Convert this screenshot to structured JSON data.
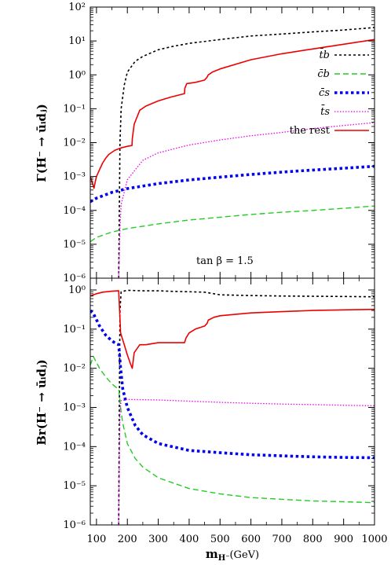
{
  "chart_data": [
    {
      "type": "line",
      "ylabel": "Γ(H⁻ → ūᵢdⱼ)",
      "yscale": "log",
      "ylim": [
        1e-06,
        100
      ],
      "xlim": [
        80,
        1000
      ],
      "y_tick_labels": [
        "10⁻⁶",
        "10⁻⁵",
        "10⁻⁴",
        "10⁻³",
        "10⁻²",
        "10⁻¹",
        "10⁰",
        "10¹",
        "10²"
      ],
      "annotation": "tan β = 1.5",
      "legend_position": "upper-right",
      "series": [
        {
          "name": "t̄b",
          "color": "#000000",
          "style": "dotted-thin",
          "x": [
            172,
            176,
            180,
            190,
            200,
            225,
            250,
            300,
            350,
            400,
            500,
            600,
            700,
            800,
            900,
            1000
          ],
          "y": [
            1e-06,
            0.01,
            0.1,
            0.5,
            1.2,
            2.5,
            3.5,
            5.5,
            7,
            8.5,
            11,
            14,
            16,
            18.5,
            21,
            25
          ]
        },
        {
          "name": "c̄b",
          "color": "#22cc22",
          "style": "dashed",
          "x": [
            80,
            100,
            150,
            200,
            300,
            400,
            500,
            600,
            700,
            800,
            900,
            1000
          ],
          "y": [
            1.2e-05,
            1.6e-05,
            2.3e-05,
            2.9e-05,
            4e-05,
            5.2e-05,
            6.3e-05,
            7.6e-05,
            8.8e-05,
            0.0001,
            0.000115,
            0.000135
          ]
        },
        {
          "name": "c̄s",
          "color": "#0000ee",
          "style": "dotted-thick",
          "x": [
            80,
            100,
            150,
            200,
            300,
            400,
            500,
            600,
            700,
            800,
            900,
            1000
          ],
          "y": [
            0.00018,
            0.00023,
            0.00034,
            0.00044,
            0.00062,
            0.00079,
            0.00096,
            0.00115,
            0.00135,
            0.00155,
            0.00175,
            0.002
          ]
        },
        {
          "name": "t̄s",
          "color": "#ee00ee",
          "style": "dotted-fine",
          "x": [
            172,
            176,
            180,
            200,
            250,
            300,
            400,
            500,
            600,
            700,
            800,
            900,
            1000
          ],
          "y": [
            1e-06,
            3e-05,
            0.00015,
            0.0008,
            0.003,
            0.005,
            0.0085,
            0.012,
            0.016,
            0.02,
            0.026,
            0.032,
            0.039
          ]
        },
        {
          "name": "the rest",
          "color": "#ee0000",
          "style": "solid",
          "x": [
            80,
            88,
            92,
            96,
            100,
            110,
            120,
            130,
            140,
            160,
            180,
            200,
            215,
            216,
            222,
            240,
            260,
            300,
            340,
            385,
            386,
            392,
            420,
            450,
            458,
            462,
            475,
            500,
            600,
            700,
            800,
            900,
            1000
          ],
          "y": [
            0.001,
            0.0006,
            0.00045,
            0.0007,
            0.001,
            0.0016,
            0.0025,
            0.0035,
            0.0045,
            0.006,
            0.007,
            0.0078,
            0.0082,
            0.013,
            0.035,
            0.09,
            0.12,
            0.17,
            0.22,
            0.28,
            0.4,
            0.55,
            0.6,
            0.7,
            0.85,
            1.0,
            1.2,
            1.5,
            2.8,
            4.2,
            5.8,
            8,
            11
          ]
        }
      ]
    },
    {
      "type": "line",
      "ylabel": "Br(H⁻ → ūᵢdⱼ)",
      "xlabel_main": "m",
      "xlabel_sub": "H⁻",
      "xlabel_unit": "(GeV)",
      "yscale": "log",
      "ylim": [
        1e-06,
        2
      ],
      "xlim": [
        80,
        1000
      ],
      "x_ticks": [
        100,
        200,
        300,
        400,
        500,
        600,
        700,
        800,
        900,
        1000
      ],
      "y_tick_labels": [
        "10⁻⁶",
        "10⁻⁵",
        "10⁻⁴",
        "10⁻³",
        "10⁻²",
        "10⁻¹",
        "10⁰"
      ],
      "series": [
        {
          "name": "t̄b",
          "color": "#000000",
          "style": "dotted-thin",
          "x": [
            172,
            174,
            176,
            180,
            200,
            250,
            300,
            350,
            400,
            450,
            480,
            500,
            600,
            700,
            800,
            900,
            1000
          ],
          "y": [
            1e-06,
            0.001,
            0.3,
            0.9,
            0.98,
            0.95,
            0.95,
            0.92,
            0.9,
            0.88,
            0.8,
            0.75,
            0.72,
            0.7,
            0.69,
            0.68,
            0.67
          ]
        },
        {
          "name": "c̄b",
          "color": "#22cc22",
          "style": "dashed",
          "x": [
            80,
            90,
            110,
            130,
            150,
            165,
            172,
            178,
            185,
            200,
            225,
            250,
            300,
            400,
            500,
            600,
            700,
            800,
            900,
            1000
          ],
          "y": [
            0.012,
            0.02,
            0.01,
            0.006,
            0.004,
            0.0032,
            0.003,
            0.001,
            0.0004,
            0.00012,
            5e-05,
            3e-05,
            1.6e-05,
            8.5e-06,
            6.2e-06,
            5e-06,
            4.5e-06,
            4.1e-06,
            3.9e-06,
            3.7e-06
          ]
        },
        {
          "name": "c̄s",
          "color": "#0000ee",
          "style": "dotted-thick",
          "x": [
            80,
            90,
            110,
            130,
            150,
            165,
            172,
            178,
            185,
            200,
            225,
            250,
            300,
            400,
            500,
            600,
            700,
            800,
            900,
            1000
          ],
          "y": [
            0.3,
            0.25,
            0.12,
            0.07,
            0.05,
            0.042,
            0.04,
            0.01,
            0.003,
            0.001,
            0.00035,
            0.0002,
            0.00012,
            8e-05,
            7e-05,
            6.2e-05,
            5.8e-05,
            5.5e-05,
            5.3e-05,
            5.2e-05
          ]
        },
        {
          "name": "t̄s",
          "color": "#ee00ee",
          "style": "dotted-fine",
          "x": [
            172,
            174,
            176,
            180,
            200,
            300,
            400,
            500,
            600,
            700,
            800,
            900,
            1000
          ],
          "y": [
            1e-06,
            5e-05,
            0.0008,
            0.0015,
            0.0016,
            0.00155,
            0.00145,
            0.00135,
            0.00128,
            0.00122,
            0.00118,
            0.00114,
            0.0011
          ]
        },
        {
          "name": "the rest",
          "color": "#ee0000",
          "style": "solid",
          "x": [
            80,
            90,
            100,
            120,
            150,
            170,
            172,
            178,
            190,
            200,
            210,
            216,
            222,
            240,
            260,
            300,
            340,
            385,
            390,
            400,
            420,
            450,
            458,
            462,
            480,
            500,
            600,
            700,
            800,
            900,
            1000
          ],
          "y": [
            0.7,
            0.75,
            0.8,
            0.88,
            0.93,
            0.95,
            0.95,
            0.08,
            0.04,
            0.022,
            0.013,
            0.01,
            0.025,
            0.04,
            0.04,
            0.045,
            0.045,
            0.045,
            0.06,
            0.08,
            0.1,
            0.12,
            0.14,
            0.17,
            0.2,
            0.22,
            0.26,
            0.28,
            0.3,
            0.31,
            0.32
          ]
        }
      ]
    }
  ]
}
